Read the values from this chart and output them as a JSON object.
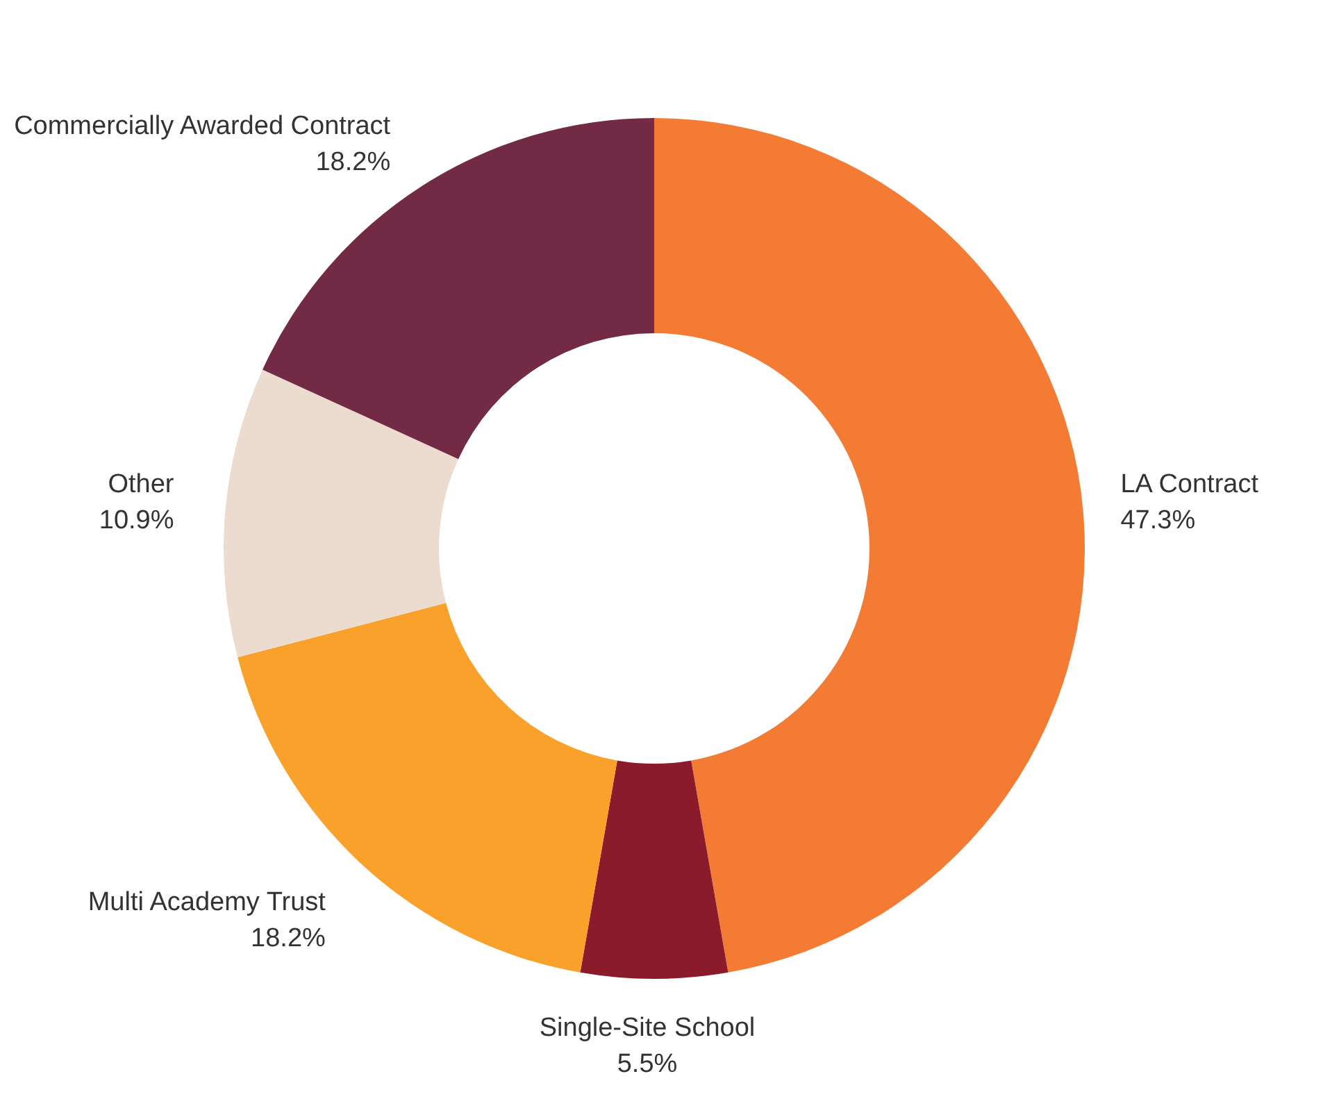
{
  "chart_data": {
    "type": "donut",
    "categories": [
      "LA Contract",
      "Single-Site School",
      "Multi Academy Trust",
      "Other",
      "Commercially Awarded Contract"
    ],
    "values": [
      47.3,
      5.5,
      18.2,
      10.9,
      18.2
    ],
    "value_labels": [
      "47.3%",
      "5.5%",
      "18.2%",
      "10.9%",
      "18.2%"
    ],
    "colors": [
      "#f47b33",
      "#8b1a2b",
      "#f9a12a",
      "#ecdcd0",
      "#722a45"
    ],
    "legend": false
  }
}
